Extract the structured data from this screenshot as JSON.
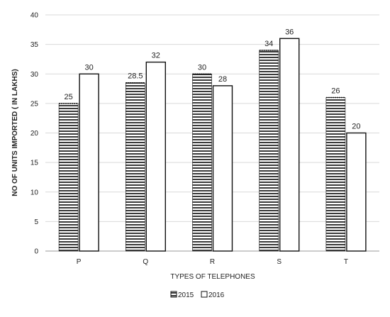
{
  "chart_data": {
    "type": "bar",
    "categories": [
      "P",
      "Q",
      "R",
      "S",
      "T"
    ],
    "series": [
      {
        "name": "2015",
        "values": [
          25,
          28.5,
          30,
          34,
          26
        ],
        "fill": "horizontal-stripes"
      },
      {
        "name": "2016",
        "values": [
          30,
          32,
          28,
          36,
          20
        ],
        "fill": "white"
      }
    ],
    "data_labels": [
      [
        "25",
        "28.5",
        "30",
        "34",
        "26"
      ],
      [
        "30",
        "32",
        "28",
        "36",
        "20"
      ]
    ],
    "xlabel": "TYPES OF TELEPHONES",
    "ylabel": "NO OF UNITS IMPORTED ( IN LAKHS)",
    "ylim": [
      0,
      40
    ],
    "yticks": [
      0,
      5,
      10,
      15,
      20,
      25,
      30,
      35,
      40
    ],
    "ytick_labels": [
      "0",
      "5",
      "10",
      "15",
      "20",
      "25",
      "30",
      "35",
      "40"
    ],
    "grid": true,
    "legend_position": "bottom-center",
    "colors": {
      "stripe": "#3a3a3a",
      "bar_outline": "#111111",
      "grid": "#d9d9d9",
      "axis": "#999999"
    }
  }
}
